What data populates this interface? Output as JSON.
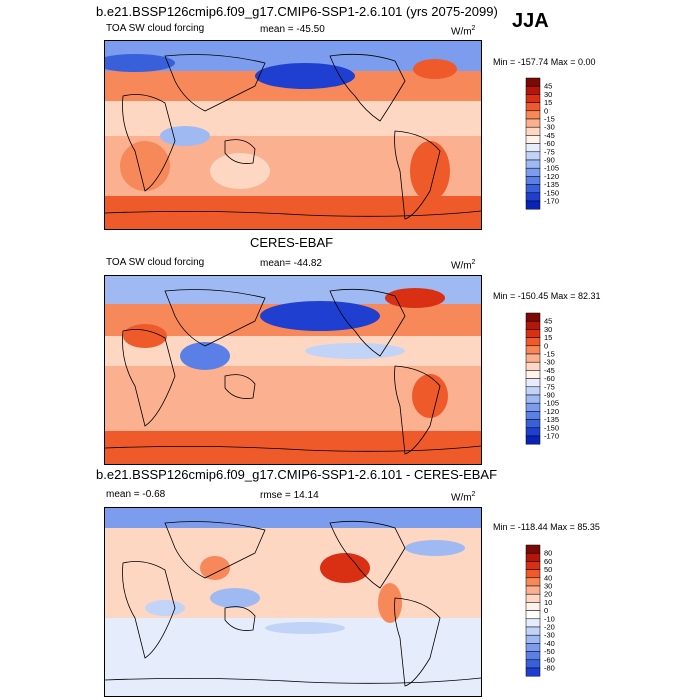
{
  "season": "JJA",
  "colors": {
    "abs_scale": [
      "#7a0a06",
      "#b3160b",
      "#d92f13",
      "#ef5a2a",
      "#f7885a",
      "#fbb090",
      "#fdd7c2",
      "#fff2e8",
      "#e5ecfb",
      "#c2d3f8",
      "#9fb9f3",
      "#7c9dee",
      "#5a7fe6",
      "#3960db",
      "#1e3fcf",
      "#0b22b8",
      "#001090",
      "#00005e"
    ],
    "diff_scale": [
      "#7a0a06",
      "#b3160b",
      "#d92f13",
      "#ef5a2a",
      "#f7885a",
      "#fbb090",
      "#fdd7c2",
      "#fff2e8",
      "#ffffff",
      "#e5ecfb",
      "#c2d3f8",
      "#9fb9f3",
      "#7c9dee",
      "#5a7fe6",
      "#3960db",
      "#1e3fcf",
      "#0b22b8",
      "#00005e"
    ]
  },
  "panels": [
    {
      "title": "b.e21.BSSP126cmip6.f09_g17.CMIP6-SSP1-2.6.101 (yrs 2075-2099)",
      "left_label": "TOA SW cloud forcing",
      "stat_label": "mean = -45.50",
      "units": "W/m",
      "units_sup": "2",
      "minmax": "Min = -157.74 Max =   0.00"
    },
    {
      "title": "CERES-EBAF",
      "left_label": "TOA SW cloud forcing",
      "stat_label": "mean= -44.82",
      "units": "W/m",
      "units_sup": "2",
      "minmax": "Min = -150.45 Max =  82.31"
    },
    {
      "title": "b.e21.BSSP126cmip6.f09_g17.CMIP6-SSP1-2.6.101 - CERES-EBAF",
      "left_label": "mean =  -0.68",
      "stat_label": "rmse =  14.14",
      "units": "W/m",
      "units_sup": "2",
      "minmax": "Min = -118.44 Max =  85.35"
    }
  ],
  "chart_data": [
    {
      "type": "heatmap",
      "title": "b.e21.BSSP126cmip6.f09_g17.CMIP6-SSP1-2.6.101 (yrs 2075-2099)",
      "variable": "TOA SW cloud forcing",
      "units": "W/m2",
      "mean": -45.5,
      "min": -157.74,
      "max": 0.0,
      "colorbar_levels": [
        45,
        30,
        15,
        0,
        -15,
        -30,
        -45,
        -60,
        -75,
        -90,
        -105,
        -120,
        -135,
        -150,
        -170
      ]
    },
    {
      "type": "heatmap",
      "title": "CERES-EBAF",
      "variable": "TOA SW cloud forcing",
      "units": "W/m2",
      "mean": -44.82,
      "min": -150.45,
      "max": 82.31,
      "colorbar_levels": [
        45,
        30,
        15,
        0,
        -15,
        -30,
        -45,
        -60,
        -75,
        -90,
        -105,
        -120,
        -135,
        -150,
        -170
      ]
    },
    {
      "type": "heatmap",
      "title": "b.e21.BSSP126cmip6.f09_g17.CMIP6-SSP1-2.6.101 - CERES-EBAF",
      "units": "W/m2",
      "mean": -0.68,
      "rmse": 14.14,
      "min": -118.44,
      "max": 85.35,
      "colorbar_levels": [
        80,
        60,
        50,
        40,
        30,
        20,
        10,
        0,
        -10,
        -20,
        -30,
        -40,
        -50,
        -60,
        -80
      ]
    }
  ]
}
